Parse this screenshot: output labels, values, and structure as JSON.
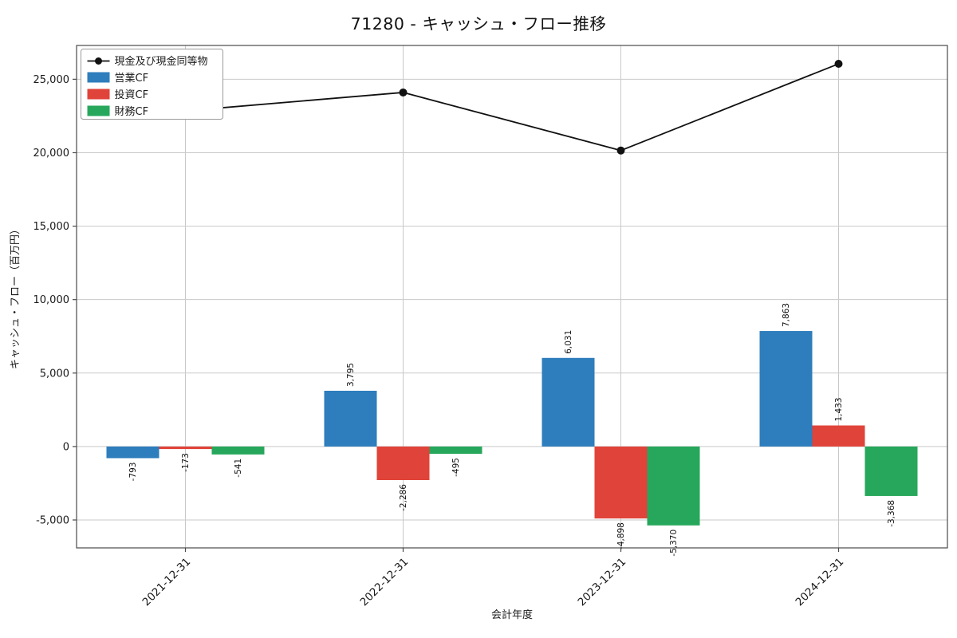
{
  "chart_data": {
    "type": "bar",
    "title": "71280 - キャッシュ・フロー推移",
    "xlabel": "会計年度",
    "ylabel": "キャッシュ・フロー（百万円）",
    "categories": [
      "2021-12-31",
      "2022-12-31",
      "2023-12-31",
      "2024-12-31"
    ],
    "bar_series": [
      {
        "name": "営業CF",
        "color": "#2e7dbc",
        "values": [
          -793,
          3795,
          6031,
          7863
        ]
      },
      {
        "name": "投資CF",
        "color": "#e04339",
        "values": [
          -173,
          -2286,
          -4898,
          1433
        ]
      },
      {
        "name": "財務CF",
        "color": "#27a75b",
        "values": [
          -541,
          -495,
          -5370,
          -3368
        ]
      }
    ],
    "line_series": {
      "name": "現金及び現金同等物",
      "color": "#111111",
      "values": [
        22850,
        24100,
        20150,
        26050
      ],
      "marker_colors": [
        "#b5b5b5",
        "#111111",
        "#111111",
        "#111111"
      ]
    },
    "yticks": [
      -5000,
      0,
      5000,
      10000,
      15000,
      20000,
      25000
    ],
    "ylim": [
      -6900,
      27300
    ],
    "grid": true,
    "legend_position": "upper-left"
  }
}
